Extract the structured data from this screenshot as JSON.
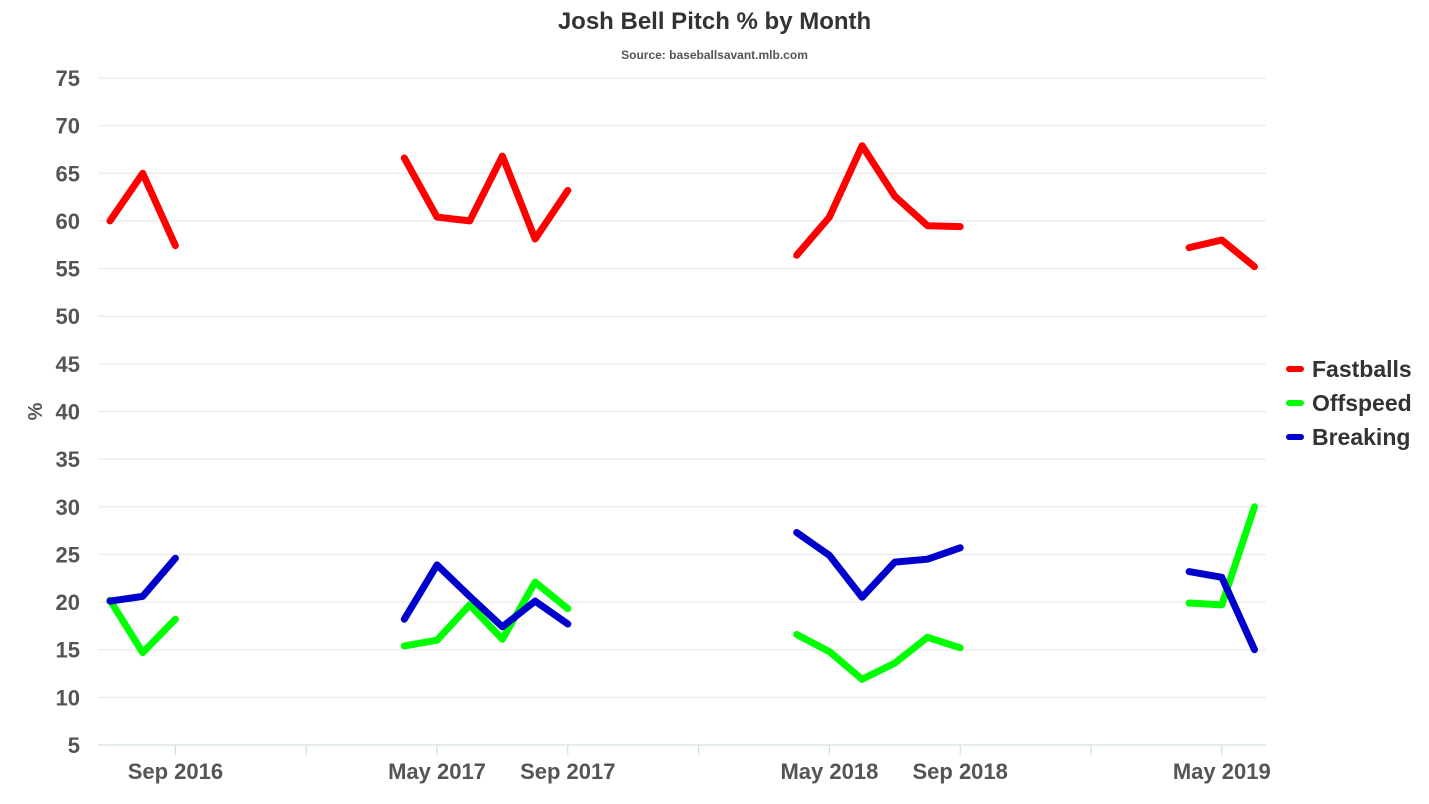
{
  "chart_data": {
    "type": "line",
    "title": "Josh Bell Pitch % by Month",
    "subtitle": "Source: baseballsavant.mlb.com",
    "xlabel": "",
    "ylabel": "%",
    "ylim": [
      5,
      75
    ],
    "yticks": [
      5,
      10,
      15,
      20,
      25,
      30,
      35,
      40,
      45,
      50,
      55,
      60,
      65,
      70,
      75
    ],
    "x": [
      "Jul 2016",
      "Aug 2016",
      "Sep 2016",
      "Oct 2016",
      "Nov 2016",
      "Dec 2016",
      "Jan 2017",
      "Feb 2017",
      "Mar 2017",
      "Apr 2017",
      "May 2017",
      "Jun 2017",
      "Jul 2017",
      "Aug 2017",
      "Sep 2017",
      "Oct 2017",
      "Nov 2017",
      "Dec 2017",
      "Jan 2018",
      "Feb 2018",
      "Mar 2018",
      "Apr 2018",
      "May 2018",
      "Jun 2018",
      "Jul 2018",
      "Aug 2018",
      "Sep 2018",
      "Oct 2018",
      "Nov 2018",
      "Dec 2018",
      "Jan 2019",
      "Feb 2019",
      "Mar 2019",
      "Apr 2019",
      "May 2019",
      "Jun 2019"
    ],
    "xticks_labeled": [
      "Sep 2016",
      "May 2017",
      "Sep 2017",
      "May 2018",
      "Sep 2018",
      "May 2019"
    ],
    "grid": true,
    "legend_position": "right",
    "series": [
      {
        "name": "Fastballs",
        "color": "#ff0000",
        "values": [
          60.0,
          65.0,
          57.4,
          null,
          null,
          null,
          null,
          null,
          null,
          66.6,
          60.4,
          60.0,
          66.8,
          58.1,
          63.2,
          null,
          null,
          null,
          null,
          null,
          null,
          56.4,
          60.4,
          67.9,
          62.6,
          59.5,
          59.4,
          null,
          null,
          null,
          null,
          null,
          null,
          57.2,
          58.0,
          55.2
        ]
      },
      {
        "name": "Offspeed",
        "color": "#00ff00",
        "values": [
          20.2,
          14.7,
          18.2,
          null,
          null,
          null,
          null,
          null,
          null,
          15.4,
          16.0,
          19.7,
          16.1,
          22.1,
          19.3,
          null,
          null,
          null,
          null,
          null,
          null,
          16.6,
          14.8,
          11.9,
          13.6,
          16.3,
          15.2,
          null,
          null,
          null,
          null,
          null,
          null,
          19.9,
          19.7,
          30.0
        ]
      },
      {
        "name": "Breaking",
        "color": "#0000cc",
        "values": [
          20.1,
          20.6,
          24.6,
          null,
          null,
          null,
          null,
          null,
          null,
          18.2,
          23.9,
          20.6,
          17.4,
          20.1,
          17.7,
          null,
          null,
          null,
          null,
          null,
          null,
          27.3,
          24.9,
          20.5,
          24.2,
          24.5,
          25.7,
          null,
          null,
          null,
          null,
          null,
          null,
          23.2,
          22.6,
          15.0
        ]
      }
    ]
  }
}
